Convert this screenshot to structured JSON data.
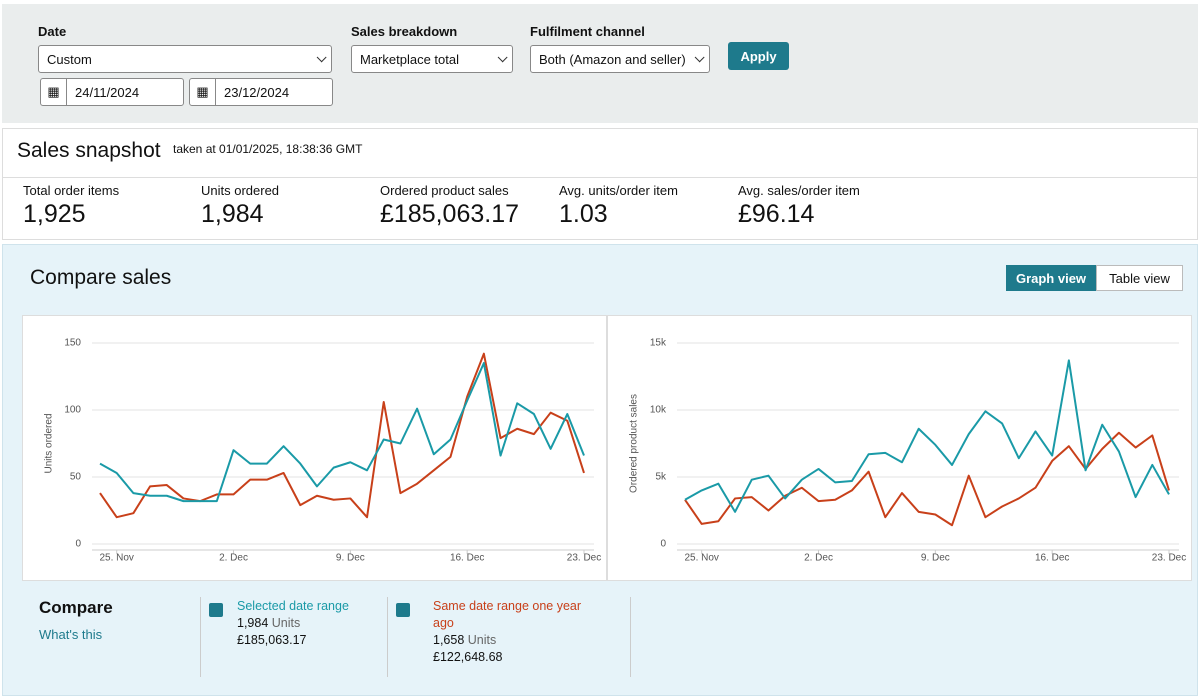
{
  "filters": {
    "date": {
      "label": "Date",
      "value": "Custom",
      "start": "24/11/2024",
      "end": "23/12/2024"
    },
    "sales_breakdown": {
      "label": "Sales breakdown",
      "value": "Marketplace total"
    },
    "fulfilment_channel": {
      "label": "Fulfilment channel",
      "value": "Both (Amazon and seller)"
    },
    "apply": "Apply"
  },
  "snapshot": {
    "title": "Sales snapshot",
    "taken_at": "taken at 01/01/2025, 18:38:36 GMT",
    "metrics": [
      {
        "label": "Total order items",
        "value": "1,925"
      },
      {
        "label": "Units ordered",
        "value": "1,984"
      },
      {
        "label": "Ordered product sales",
        "value": "£185,063.17"
      },
      {
        "label": "Avg. units/order item",
        "value": "1.03"
      },
      {
        "label": "Avg. sales/order item",
        "value": "£96.14"
      }
    ]
  },
  "compare_sales": {
    "title": "Compare sales",
    "views": [
      "Graph view",
      "Table view"
    ]
  },
  "compare": {
    "title": "Compare",
    "link": "What's this",
    "items": [
      {
        "units": "1,984",
        "units_label": "Units",
        "sales": "£185,063.17"
      },
      {
        "units": "1,658",
        "units_label": "Units",
        "sales": "£122,648.68"
      }
    ]
  },
  "chart_data": [
    {
      "type": "line",
      "y_label": "Units ordered",
      "categories": [
        null,
        "25. Nov",
        null,
        null,
        null,
        null,
        null,
        null,
        "2. Dec",
        null,
        null,
        null,
        null,
        null,
        null,
        "9. Dec",
        null,
        null,
        null,
        null,
        null,
        null,
        "16. Dec",
        null,
        null,
        null,
        null,
        null,
        null,
        "23. Dec"
      ],
      "ylim": [
        0,
        150
      ],
      "yticks": [
        0,
        50,
        100,
        150
      ],
      "grid": true,
      "series": [
        {
          "name": "Selected date range",
          "color": "#1a9aa7",
          "values": [
            60,
            53,
            38,
            36,
            36,
            32,
            32,
            32,
            70,
            60,
            60,
            73,
            60,
            43,
            57,
            61,
            55,
            78,
            75,
            101,
            67,
            78,
            107,
            135,
            66,
            105,
            97,
            71,
            97,
            66
          ]
        },
        {
          "name": "Same date range one year ago",
          "color": "#c8401a",
          "values": [
            38,
            20,
            23,
            43,
            44,
            34,
            32,
            37,
            37,
            48,
            48,
            53,
            29,
            36,
            33,
            34,
            20,
            106,
            38,
            45,
            55,
            65,
            110,
            142,
            79,
            86,
            82,
            98,
            92,
            53
          ]
        }
      ]
    },
    {
      "type": "line",
      "y_label": "Ordered product sales",
      "categories": [
        null,
        "25. Nov",
        null,
        null,
        null,
        null,
        null,
        null,
        "2. Dec",
        null,
        null,
        null,
        null,
        null,
        null,
        "9. Dec",
        null,
        null,
        null,
        null,
        null,
        null,
        "16. Dec",
        null,
        null,
        null,
        null,
        null,
        null,
        "23. Dec"
      ],
      "ylim": [
        0,
        15000
      ],
      "yticks": [
        0,
        {
          "value": 5000,
          "label": "5k"
        },
        {
          "value": 10000,
          "label": "10k"
        },
        {
          "value": 15000,
          "label": "15k"
        }
      ],
      "grid": true,
      "series": [
        {
          "name": "Selected date range",
          "color": "#1a9aa7",
          "values": [
            3300,
            4000,
            4500,
            2400,
            4800,
            5100,
            3400,
            4800,
            5600,
            4600,
            4700,
            6700,
            6800,
            6100,
            8600,
            7400,
            5900,
            8200,
            9900,
            9000,
            6400,
            8400,
            6600,
            13700,
            5500,
            8900,
            6900,
            3500,
            5900,
            3700
          ]
        },
        {
          "name": "Same date range one year ago",
          "color": "#c8401a",
          "values": [
            3300,
            1500,
            1700,
            3400,
            3500,
            2500,
            3600,
            4200,
            3200,
            3300,
            4000,
            5400,
            2000,
            3800,
            2400,
            2200,
            1400,
            5100,
            2000,
            2800,
            3400,
            4200,
            6200,
            7300,
            5600,
            7100,
            8300,
            7200,
            8100,
            4000
          ]
        }
      ]
    }
  ]
}
